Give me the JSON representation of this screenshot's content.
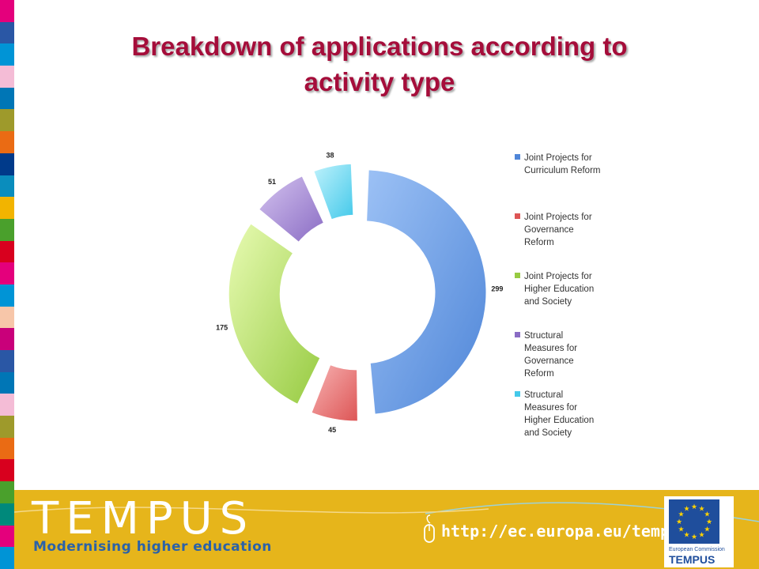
{
  "slide": {
    "title_line1": "Breakdown of applications according to",
    "title_line2": "activity type"
  },
  "chart_data": {
    "type": "pie",
    "variant": "doughnut-exploded",
    "title": "Breakdown of applications according to activity type",
    "categories": [
      "Joint Projects for Curriculum Reform",
      "Joint Projects for Governance Reform",
      "Joint Projects for Higher Education and Society",
      "Structural Measures for Governance Reform",
      "Structural Measures for Higher Education and Society"
    ],
    "values": [
      299,
      45,
      175,
      51,
      38
    ],
    "data_labels": [
      "299",
      "45",
      "175",
      "51",
      "38"
    ],
    "legend": {
      "placement": "right",
      "entries": [
        [
          "Joint Projects for",
          "Curriculum  Reform"
        ],
        [
          "Joint Projects for",
          "Governance",
          "Reform"
        ],
        [
          "Joint Projects for",
          "Higher Education",
          "and Society"
        ],
        [
          "Structural",
          "Measures for",
          "Governance",
          "Reform"
        ],
        [
          "Structural",
          "Measures for",
          "Higher Education",
          "and Society"
        ]
      ]
    },
    "colors": [
      [
        "#9cc1f5",
        "#4f86d8"
      ],
      [
        "#f7b3b3",
        "#dd5555"
      ],
      [
        "#e8fbb3",
        "#97cb42"
      ],
      [
        "#d4c3ef",
        "#8a6cc4"
      ],
      [
        "#bff2fc",
        "#44c9ea"
      ]
    ]
  },
  "stripe_colors": [
    "#e4007c",
    "#2a57a5",
    "#0094d6",
    "#f4bcd6",
    "#0076b6",
    "#9e9a2b",
    "#ea6b14",
    "#003a8a",
    "#0a8dbd",
    "#f2b400",
    "#4aa02c",
    "#d8001e",
    "#e4007c",
    "#0094d6",
    "#f7c6a9",
    "#c9007a",
    "#2a57a5",
    "#0076b6",
    "#f4bcd6",
    "#9e9a2b",
    "#ea6b14",
    "#d8001e",
    "#4aa02c",
    "#00897b",
    "#e4007c",
    "#0094d6"
  ],
  "footer": {
    "brand": "TEMPUS",
    "slogan": "Modernising higher education",
    "url": "http://ec.europa.eu/tempus",
    "eu_label": "European Commission",
    "eu_tempus": "TEMPUS",
    "background": "#e6b51b"
  }
}
